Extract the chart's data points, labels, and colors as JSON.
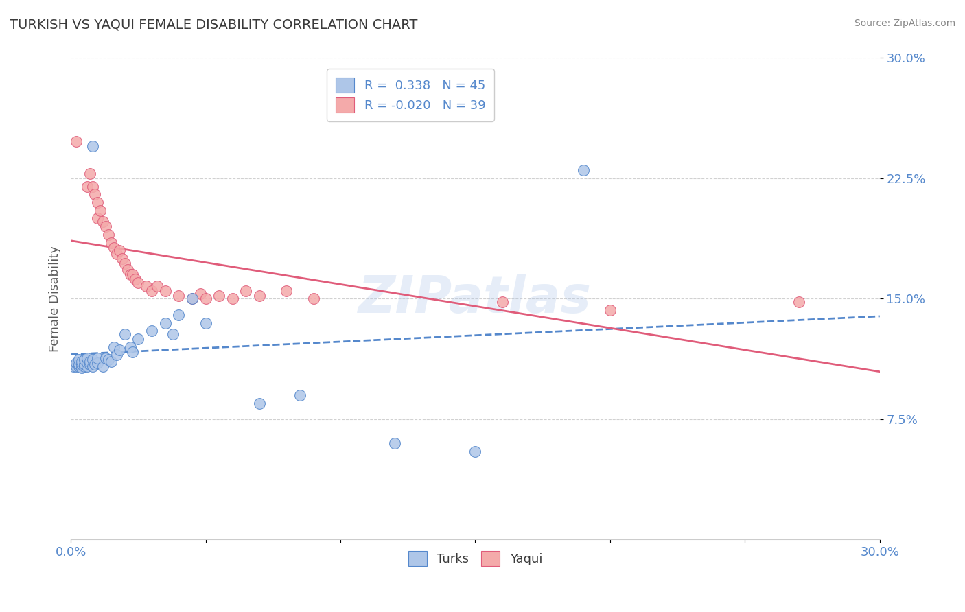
{
  "title": "TURKISH VS YAQUI FEMALE DISABILITY CORRELATION CHART",
  "source": "Source: ZipAtlas.com",
  "xlabel": "",
  "ylabel": "Female Disability",
  "xlim": [
    0.0,
    0.3
  ],
  "ylim": [
    0.0,
    0.3
  ],
  "xtick_positions": [
    0.0,
    0.05,
    0.1,
    0.15,
    0.2,
    0.25,
    0.3
  ],
  "xtick_labels": [
    "0.0%",
    "",
    "",
    "",
    "",
    "",
    "30.0%"
  ],
  "ytick_positions": [
    0.075,
    0.15,
    0.225,
    0.3
  ],
  "ytick_labels": [
    "7.5%",
    "15.0%",
    "22.5%",
    "30.0%"
  ],
  "title_color": "#3a3a3a",
  "title_fontsize": 14,
  "axis_label_color": "#5a5a5a",
  "tick_color": "#5588cc",
  "grid_color": "#cccccc",
  "background_color": "#ffffff",
  "watermark": "ZIPatlas",
  "legend_R1": "0.338",
  "legend_N1": "45",
  "legend_R2": "-0.020",
  "legend_N2": "39",
  "turks_fill_color": "#aec6e8",
  "turks_edge_color": "#5588cc",
  "yaqui_fill_color": "#f4aaaa",
  "yaqui_edge_color": "#e05c7a",
  "turks_line_color": "#5588cc",
  "yaqui_line_color": "#e05c7a",
  "turks_scatter": [
    [
      0.001,
      0.108
    ],
    [
      0.002,
      0.108
    ],
    [
      0.002,
      0.11
    ],
    [
      0.003,
      0.108
    ],
    [
      0.003,
      0.109
    ],
    [
      0.003,
      0.112
    ],
    [
      0.004,
      0.107
    ],
    [
      0.004,
      0.109
    ],
    [
      0.004,
      0.111
    ],
    [
      0.005,
      0.108
    ],
    [
      0.005,
      0.109
    ],
    [
      0.005,
      0.112
    ],
    [
      0.006,
      0.108
    ],
    [
      0.006,
      0.11
    ],
    [
      0.006,
      0.113
    ],
    [
      0.007,
      0.109
    ],
    [
      0.007,
      0.111
    ],
    [
      0.008,
      0.108
    ],
    [
      0.008,
      0.112
    ],
    [
      0.009,
      0.109
    ],
    [
      0.01,
      0.11
    ],
    [
      0.01,
      0.113
    ],
    [
      0.012,
      0.108
    ],
    [
      0.013,
      0.113
    ],
    [
      0.014,
      0.112
    ],
    [
      0.015,
      0.111
    ],
    [
      0.016,
      0.12
    ],
    [
      0.017,
      0.115
    ],
    [
      0.018,
      0.118
    ],
    [
      0.02,
      0.128
    ],
    [
      0.022,
      0.12
    ],
    [
      0.023,
      0.117
    ],
    [
      0.025,
      0.125
    ],
    [
      0.03,
      0.13
    ],
    [
      0.035,
      0.135
    ],
    [
      0.038,
      0.128
    ],
    [
      0.04,
      0.14
    ],
    [
      0.045,
      0.15
    ],
    [
      0.05,
      0.135
    ],
    [
      0.008,
      0.245
    ],
    [
      0.07,
      0.085
    ],
    [
      0.085,
      0.09
    ],
    [
      0.12,
      0.06
    ],
    [
      0.15,
      0.055
    ],
    [
      0.19,
      0.23
    ]
  ],
  "yaqui_scatter": [
    [
      0.002,
      0.248
    ],
    [
      0.006,
      0.22
    ],
    [
      0.007,
      0.228
    ],
    [
      0.008,
      0.22
    ],
    [
      0.009,
      0.215
    ],
    [
      0.01,
      0.21
    ],
    [
      0.01,
      0.2
    ],
    [
      0.011,
      0.205
    ],
    [
      0.012,
      0.198
    ],
    [
      0.013,
      0.195
    ],
    [
      0.014,
      0.19
    ],
    [
      0.015,
      0.185
    ],
    [
      0.016,
      0.182
    ],
    [
      0.017,
      0.178
    ],
    [
      0.018,
      0.18
    ],
    [
      0.019,
      0.175
    ],
    [
      0.02,
      0.172
    ],
    [
      0.021,
      0.168
    ],
    [
      0.022,
      0.165
    ],
    [
      0.023,
      0.165
    ],
    [
      0.024,
      0.162
    ],
    [
      0.025,
      0.16
    ],
    [
      0.028,
      0.158
    ],
    [
      0.03,
      0.155
    ],
    [
      0.032,
      0.158
    ],
    [
      0.035,
      0.155
    ],
    [
      0.04,
      0.152
    ],
    [
      0.045,
      0.15
    ],
    [
      0.048,
      0.153
    ],
    [
      0.05,
      0.15
    ],
    [
      0.055,
      0.152
    ],
    [
      0.06,
      0.15
    ],
    [
      0.065,
      0.155
    ],
    [
      0.07,
      0.152
    ],
    [
      0.08,
      0.155
    ],
    [
      0.09,
      0.15
    ],
    [
      0.16,
      0.148
    ],
    [
      0.2,
      0.143
    ],
    [
      0.27,
      0.148
    ]
  ]
}
